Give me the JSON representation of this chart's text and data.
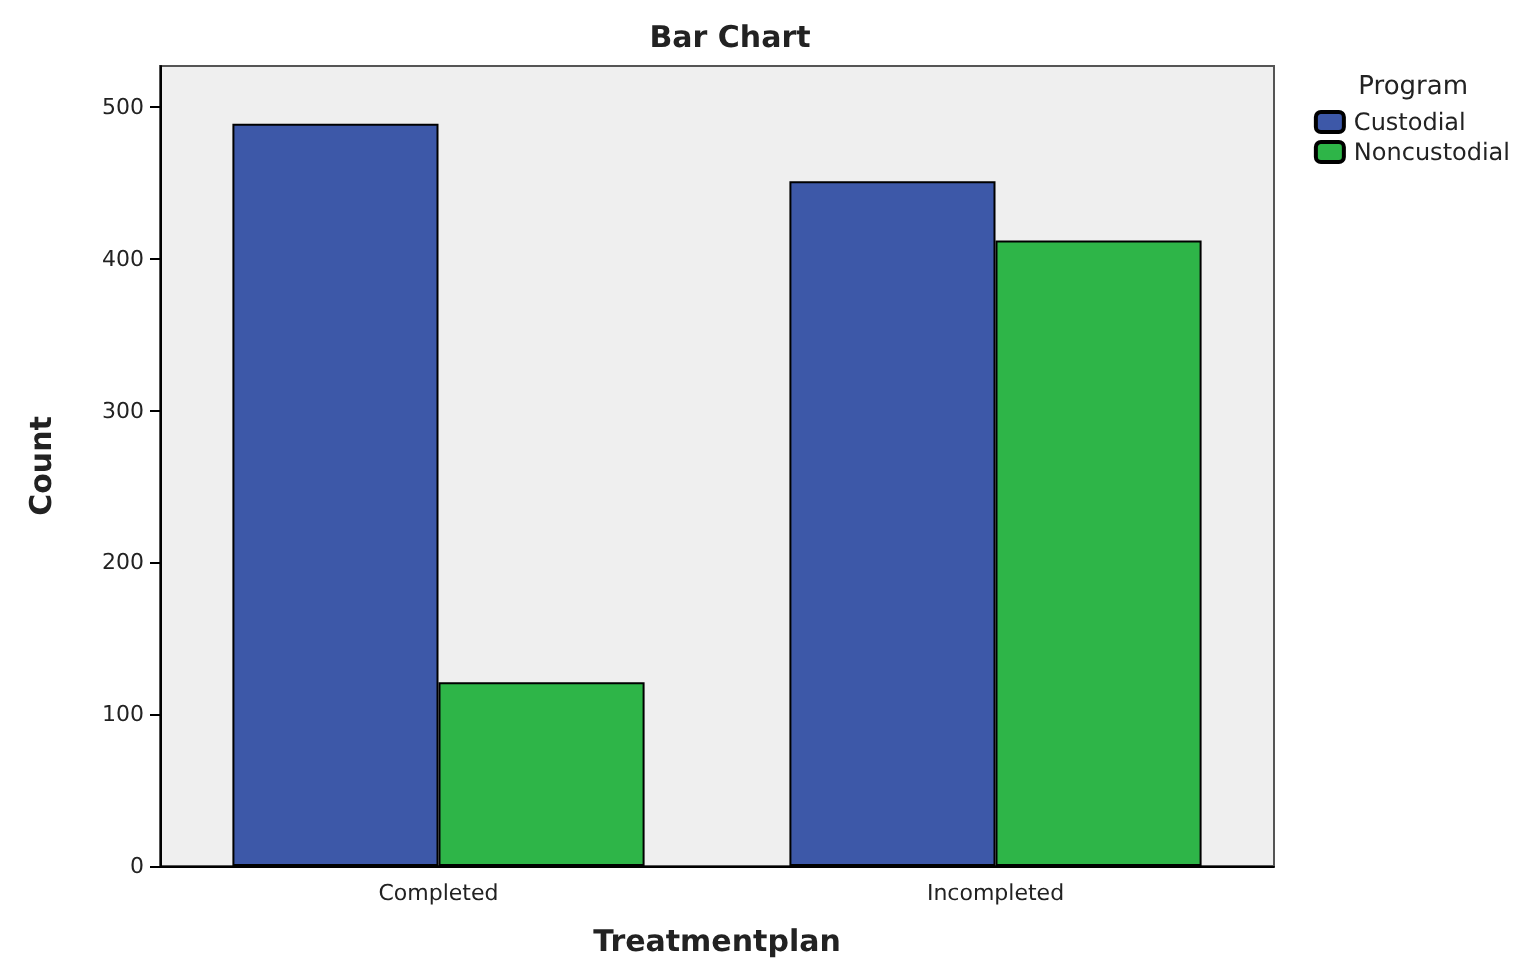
{
  "chart_data": {
    "type": "bar",
    "title": "Bar Chart",
    "xlabel": "Treatmentplan",
    "ylabel": "Count",
    "legend_title": "Program",
    "legend": "right",
    "categories": [
      "Completed",
      "Incompleted"
    ],
    "series": [
      {
        "name": "Custodial",
        "color": "#3d58a8",
        "values": [
          489,
          451
        ]
      },
      {
        "name": "Noncustodial",
        "color": "#2eb548",
        "values": [
          121,
          412
        ]
      }
    ],
    "ylim": [
      0,
      527
    ],
    "yticks": [
      0,
      100,
      200,
      300,
      400,
      500
    ],
    "grid": false
  }
}
